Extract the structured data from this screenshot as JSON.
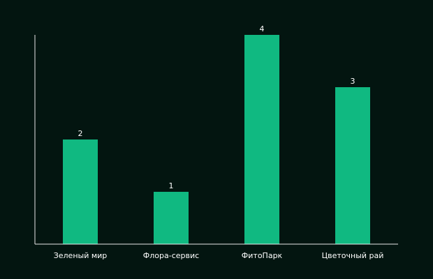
{
  "chart_data": {
    "type": "bar",
    "categories": [
      "Зеленый мир",
      "Флора-сервис",
      "ФитоПарк",
      "Цветочный рай"
    ],
    "values": [
      2,
      1,
      4,
      3
    ],
    "color": "#10b981",
    "ylim": [
      0,
      4
    ],
    "grid": false
  }
}
